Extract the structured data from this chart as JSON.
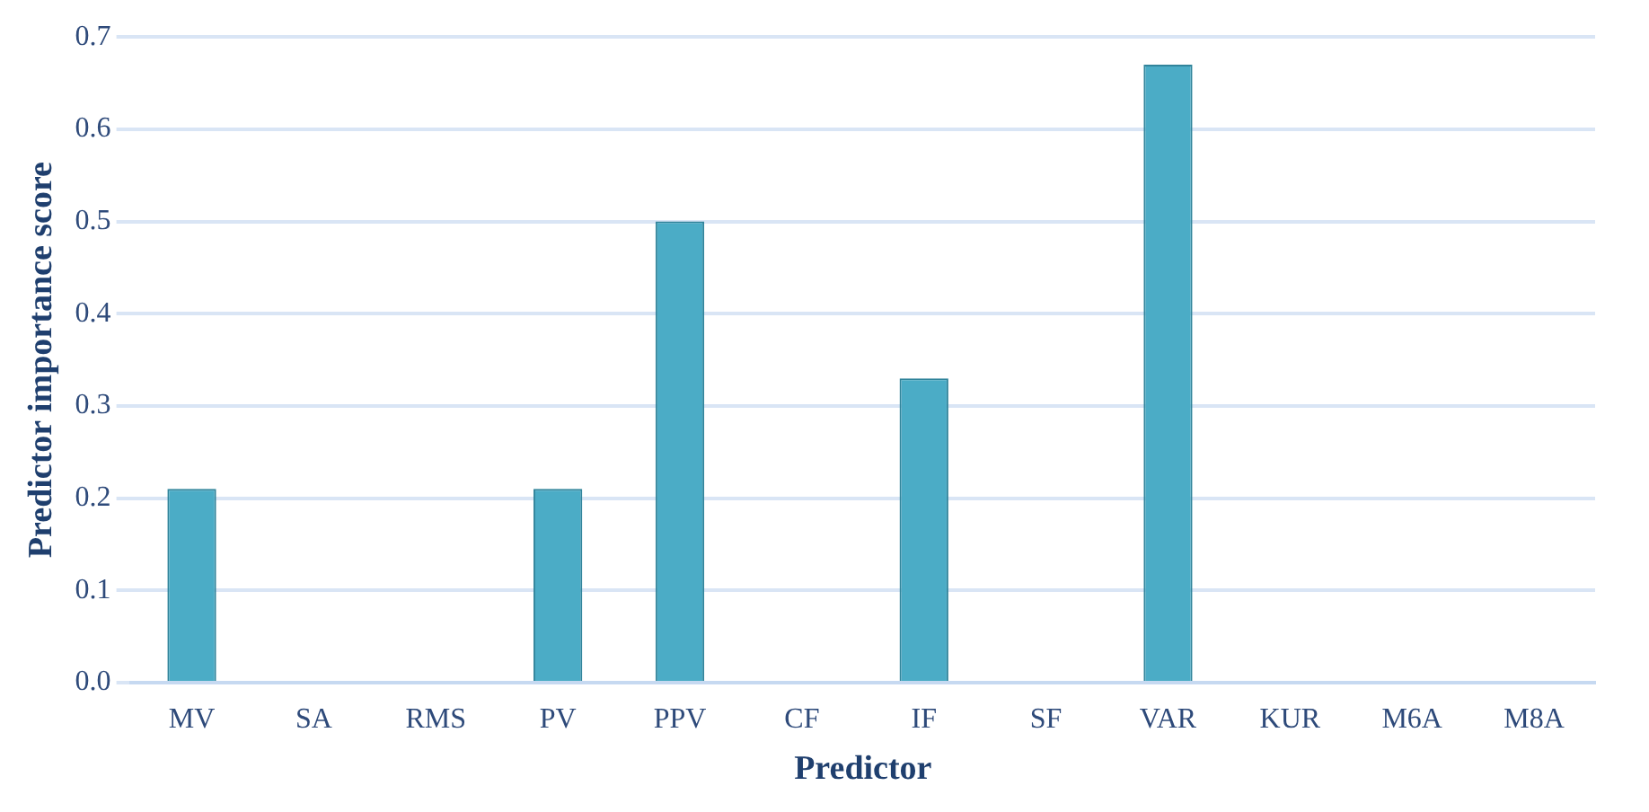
{
  "chart_data": {
    "type": "bar",
    "xlabel": "Predictor",
    "ylabel": "Predictor importance score",
    "categories": [
      "MV",
      "SA",
      "RMS",
      "PV",
      "PPV",
      "CF",
      "IF",
      "SF",
      "VAR",
      "KUR",
      "M6A",
      "M8A"
    ],
    "values": [
      0.21,
      0,
      0,
      0.21,
      0.5,
      0,
      0.33,
      0,
      0.67,
      0,
      0,
      0
    ],
    "color": "#4bacc6",
    "ylim": [
      0,
      0.7
    ],
    "yticks": [
      {
        "value": 0,
        "label": "0.0"
      },
      0.1,
      0.2,
      0.3,
      0.4,
      0.5,
      0.6,
      0.7
    ],
    "grid": "y"
  }
}
